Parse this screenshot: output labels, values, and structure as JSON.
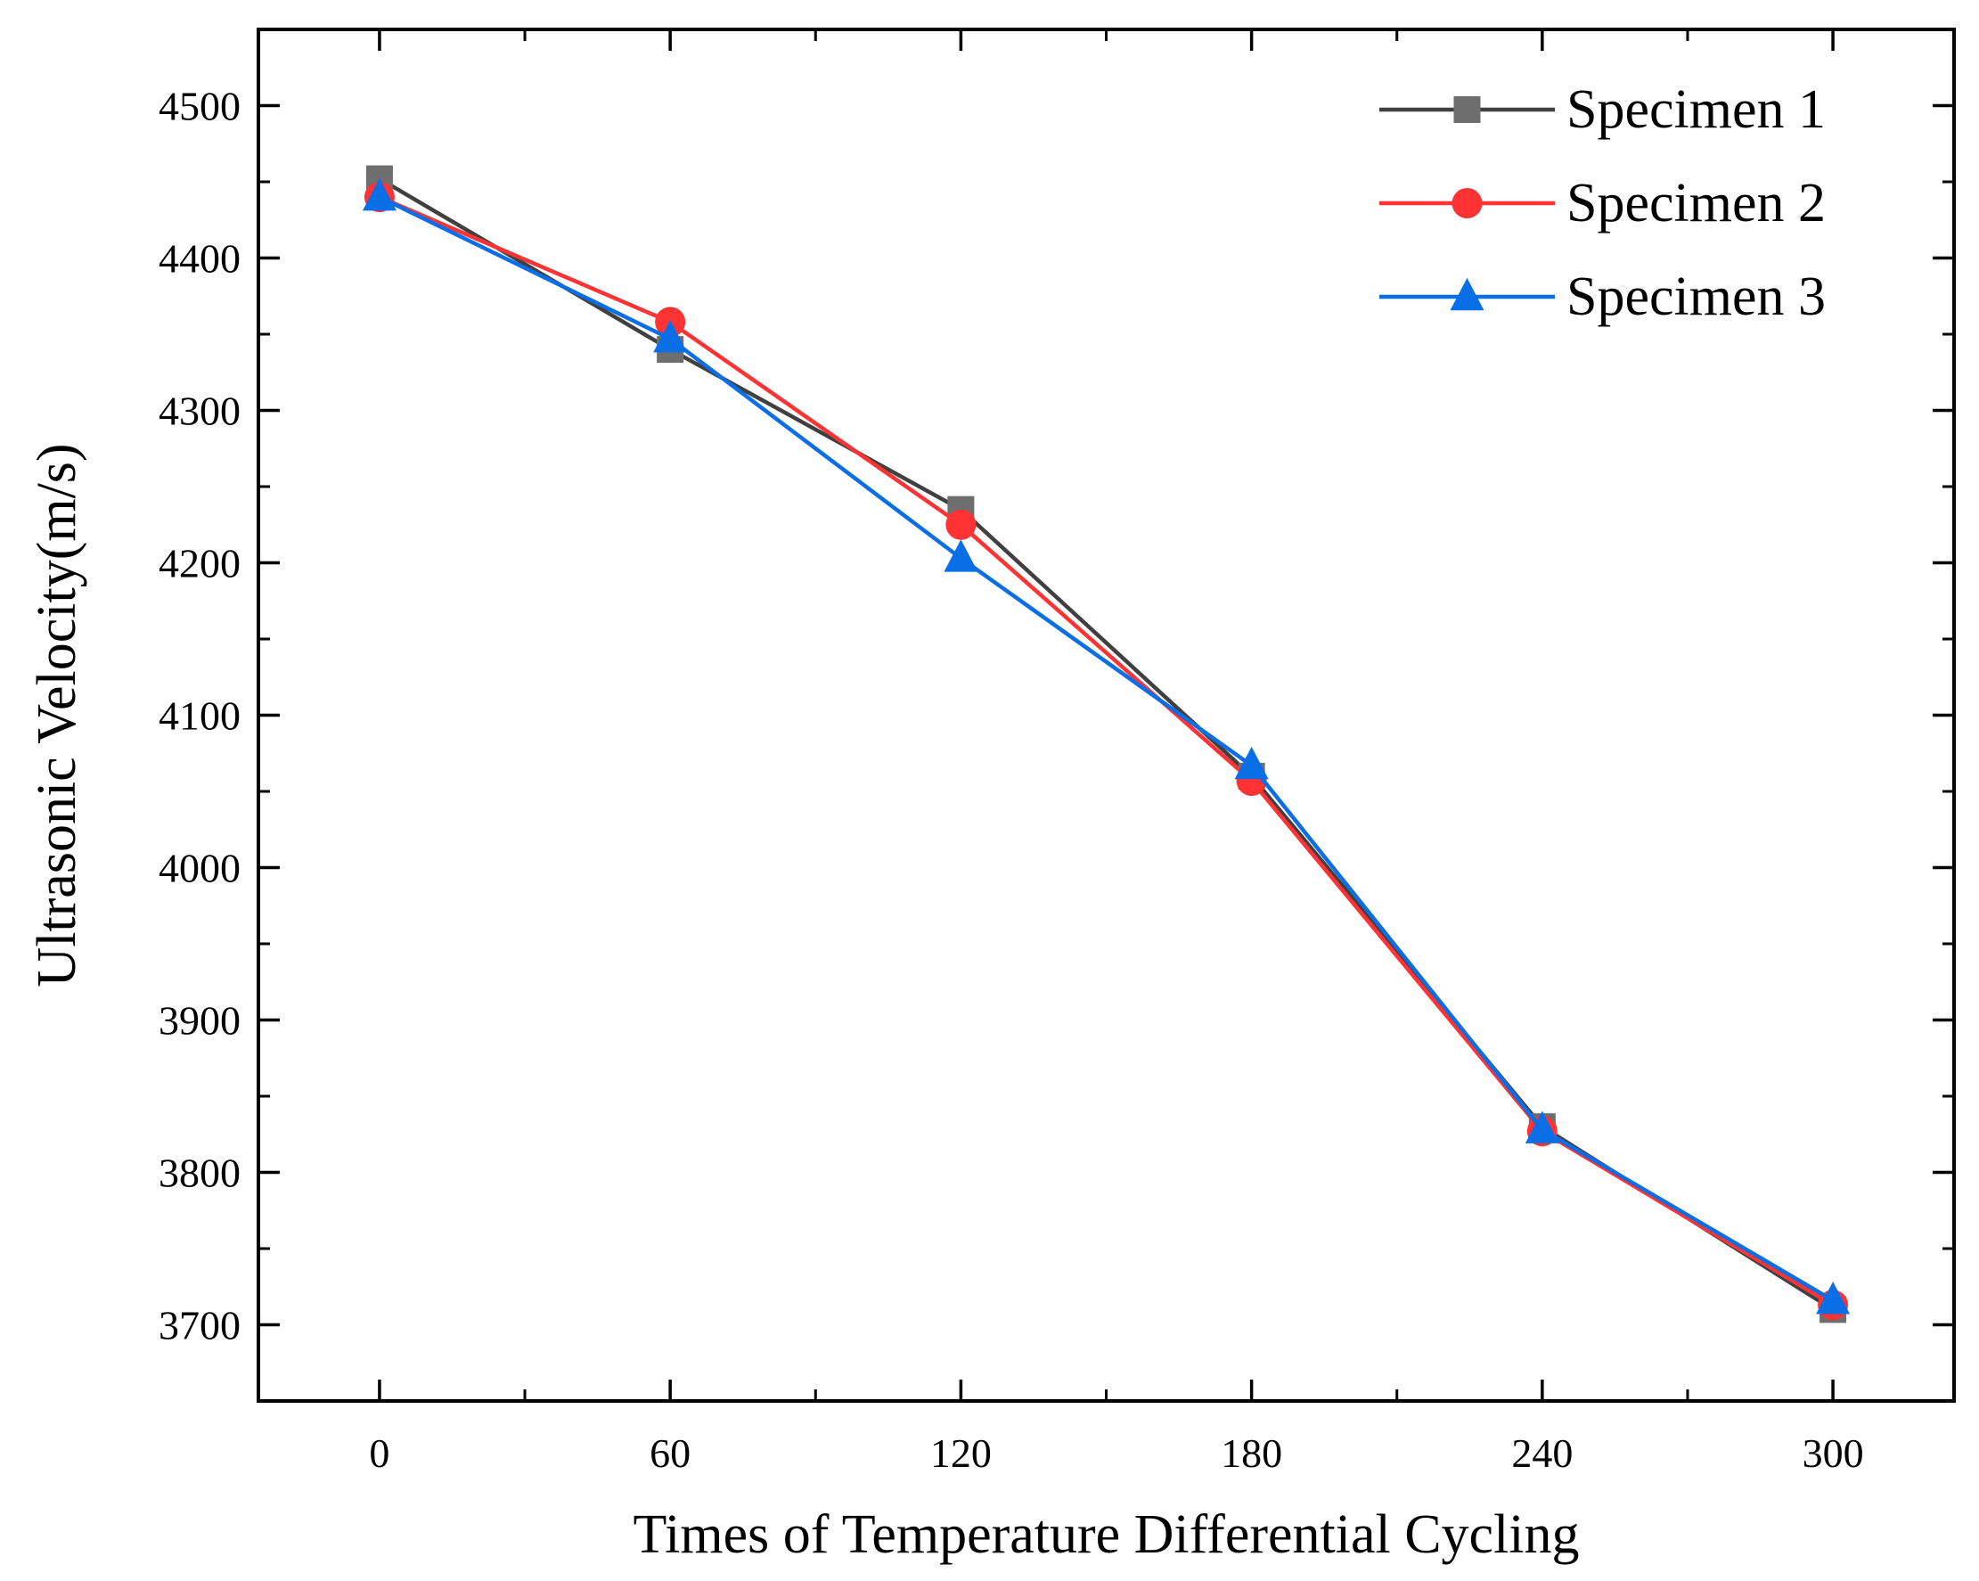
{
  "chart_data": {
    "type": "line",
    "title": "",
    "xlabel": "Times of Temperature Differential Cycling",
    "ylabel": "Ultrasonic Velocity(m/s)",
    "x": [
      0,
      60,
      120,
      180,
      240,
      300
    ],
    "xticks": [
      "0",
      "60",
      "120",
      "180",
      "240",
      "300"
    ],
    "yticks": [
      "3700",
      "3800",
      "3900",
      "4000",
      "4100",
      "4200",
      "4300",
      "4400",
      "4500"
    ],
    "xlim": [
      -25,
      325
    ],
    "ylim": [
      3650,
      4550
    ],
    "grid": false,
    "legend_position": "top-right",
    "series": [
      {
        "name": "Specimen 1",
        "marker": "square",
        "color": "#6e6e6e",
        "line_color": "#404040",
        "values": [
          4452,
          4340,
          4235,
          4060,
          3830,
          3710
        ]
      },
      {
        "name": "Specimen 2",
        "marker": "circle",
        "color": "#ff3333",
        "line_color": "#ff3333",
        "values": [
          4440,
          4358,
          4225,
          4057,
          3827,
          3713
        ]
      },
      {
        "name": "Specimen 3",
        "marker": "triangle",
        "color": "#0a6ee6",
        "line_color": "#0a6ee6",
        "values": [
          4440,
          4347,
          4203,
          4067,
          3828,
          3716
        ]
      }
    ]
  }
}
